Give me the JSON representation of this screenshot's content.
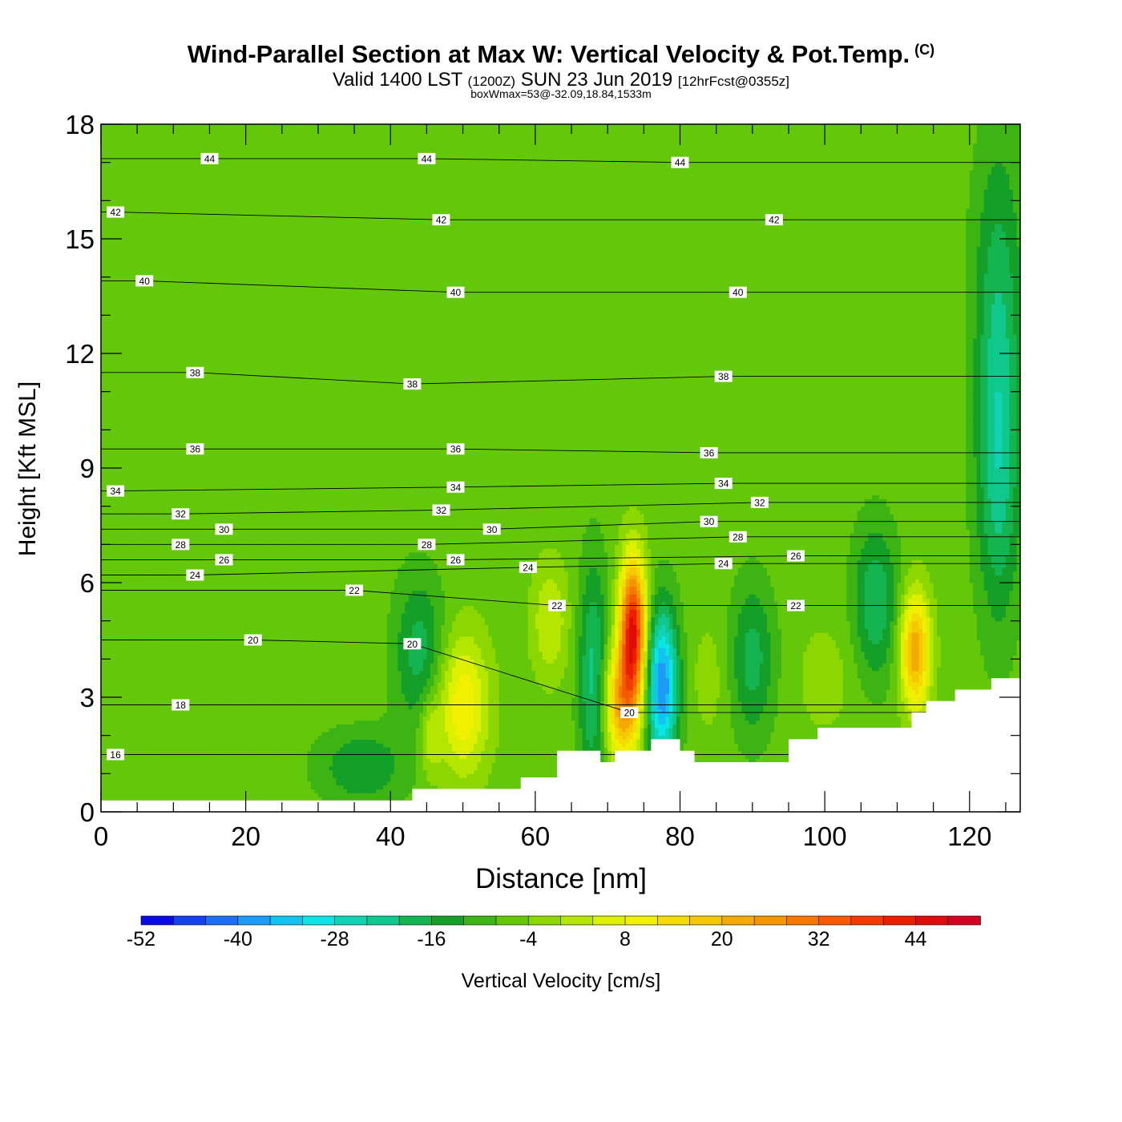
{
  "chart_data": {
    "type": "heatmap",
    "title": "Wind-Parallel Section at Max W: Vertical Velocity & Pot.Temp.",
    "title_mark": "(C)",
    "subtitle_main": "Valid 1400 LST",
    "subtitle_z": "(1200Z)",
    "subtitle_date": "SUN 23 Jun 2019",
    "subtitle_fcst": "[12hrFcst@0355z]",
    "subtitle3": "boxWmax=53@-32.09,18.84,1533m",
    "xlabel": "Distance [nm]",
    "ylabel": "Height [Kft MSL]",
    "xlim": [
      0,
      127
    ],
    "ylim": [
      0,
      18
    ],
    "xticks": [
      0,
      20,
      40,
      60,
      80,
      100,
      120
    ],
    "yticks": [
      0,
      3,
      6,
      9,
      12,
      15,
      18
    ],
    "background_value": -6,
    "terrain": [
      [
        0,
        0.3
      ],
      [
        43,
        0.3
      ],
      [
        43,
        0.6
      ],
      [
        58,
        0.6
      ],
      [
        58,
        0.9
      ],
      [
        63,
        0.9
      ],
      [
        63,
        1.6
      ],
      [
        69,
        1.6
      ],
      [
        69,
        1.3
      ],
      [
        71,
        1.3
      ],
      [
        71,
        1.6
      ],
      [
        76,
        1.6
      ],
      [
        76,
        1.9
      ],
      [
        80,
        1.9
      ],
      [
        80,
        1.6
      ],
      [
        82,
        1.6
      ],
      [
        82,
        1.3
      ],
      [
        95,
        1.3
      ],
      [
        95,
        1.9
      ],
      [
        99,
        1.9
      ],
      [
        99,
        2.2
      ],
      [
        112,
        2.2
      ],
      [
        112,
        2.6
      ],
      [
        114,
        2.6
      ],
      [
        114,
        2.9
      ],
      [
        118,
        2.9
      ],
      [
        118,
        3.2
      ],
      [
        123,
        3.2
      ],
      [
        123,
        3.5
      ],
      [
        127,
        3.5
      ]
    ],
    "w_features": [
      {
        "x": 73.5,
        "y": 4.8,
        "rx": 1.8,
        "ry": 1.8,
        "w": 50
      },
      {
        "x": 72.0,
        "y": 2.8,
        "rx": 2.5,
        "ry": 1.5,
        "w": 28
      },
      {
        "x": 77.5,
        "y": 3.3,
        "rx": 2.2,
        "ry": 2.0,
        "w": -34
      },
      {
        "x": 68.0,
        "y": 3.5,
        "rx": 2.0,
        "ry": 3.0,
        "w": -16
      },
      {
        "x": 50.0,
        "y": 2.8,
        "rx": 3.5,
        "ry": 1.8,
        "w": 18
      },
      {
        "x": 45.5,
        "y": 2.0,
        "rx": 1.5,
        "ry": 1.0,
        "w": 10
      },
      {
        "x": 44.0,
        "y": 4.2,
        "rx": 3.5,
        "ry": 2.0,
        "w": -12
      },
      {
        "x": 62.0,
        "y": 5.0,
        "rx": 2.5,
        "ry": 1.5,
        "w": 10
      },
      {
        "x": 112.5,
        "y": 4.2,
        "rx": 2.0,
        "ry": 1.5,
        "w": 30
      },
      {
        "x": 107.0,
        "y": 5.5,
        "rx": 3.0,
        "ry": 2.0,
        "w": -14
      },
      {
        "x": 124.0,
        "y": 9.0,
        "rx": 3.0,
        "ry": 4.0,
        "w": -16
      },
      {
        "x": 124.0,
        "y": 14.0,
        "rx": 3.5,
        "ry": 4.0,
        "w": -10
      },
      {
        "x": 90.0,
        "y": 4.0,
        "rx": 3.0,
        "ry": 2.0,
        "w": -12
      },
      {
        "x": 84.0,
        "y": 3.5,
        "rx": 2.5,
        "ry": 1.5,
        "w": 4
      },
      {
        "x": 100.0,
        "y": 3.5,
        "rx": 4.0,
        "ry": 1.5,
        "w": 4
      },
      {
        "x": 48.0,
        "y": 11.5,
        "rx": 4.0,
        "ry": 3.0,
        "w": 2
      },
      {
        "x": 66.0,
        "y": 13.0,
        "rx": 3.0,
        "ry": 4.0,
        "w": 2
      },
      {
        "x": 83.0,
        "y": 14.5,
        "rx": 2.0,
        "ry": 3.0,
        "w": 2
      },
      {
        "x": 34.0,
        "y": 4.0,
        "rx": 4.0,
        "ry": 1.5,
        "w": 2
      },
      {
        "x": 36.0,
        "y": 1.2,
        "rx": 6.0,
        "ry": 1.0,
        "w": -10
      },
      {
        "x": 2.0,
        "y": 3.2,
        "rx": 1.0,
        "ry": 0.5,
        "w": 2
      }
    ],
    "theta_labels": [
      {
        "x": 15,
        "y": 17.1,
        "v": "44"
      },
      {
        "x": 45,
        "y": 17.1,
        "v": "44"
      },
      {
        "x": 80,
        "y": 17.0,
        "v": "44"
      },
      {
        "x": 2,
        "y": 15.7,
        "v": "42"
      },
      {
        "x": 47,
        "y": 15.5,
        "v": "42"
      },
      {
        "x": 93,
        "y": 15.5,
        "v": "42"
      },
      {
        "x": 6,
        "y": 13.9,
        "v": "40"
      },
      {
        "x": 49,
        "y": 13.6,
        "v": "40"
      },
      {
        "x": 88,
        "y": 13.6,
        "v": "40"
      },
      {
        "x": 13,
        "y": 11.5,
        "v": "38"
      },
      {
        "x": 43,
        "y": 11.2,
        "v": "38"
      },
      {
        "x": 86,
        "y": 11.4,
        "v": "38"
      },
      {
        "x": 13,
        "y": 9.5,
        "v": "36"
      },
      {
        "x": 49,
        "y": 9.5,
        "v": "36"
      },
      {
        "x": 84,
        "y": 9.4,
        "v": "36"
      },
      {
        "x": 2,
        "y": 8.4,
        "v": "34"
      },
      {
        "x": 49,
        "y": 8.5,
        "v": "34"
      },
      {
        "x": 86,
        "y": 8.6,
        "v": "34"
      },
      {
        "x": 11,
        "y": 7.8,
        "v": "32"
      },
      {
        "x": 47,
        "y": 7.9,
        "v": "32"
      },
      {
        "x": 91,
        "y": 8.1,
        "v": "32"
      },
      {
        "x": 17,
        "y": 7.4,
        "v": "30"
      },
      {
        "x": 54,
        "y": 7.4,
        "v": "30"
      },
      {
        "x": 84,
        "y": 7.6,
        "v": "30"
      },
      {
        "x": 11,
        "y": 7.0,
        "v": "28"
      },
      {
        "x": 45,
        "y": 7.0,
        "v": "28"
      },
      {
        "x": 88,
        "y": 7.2,
        "v": "28"
      },
      {
        "x": 17,
        "y": 6.6,
        "v": "26"
      },
      {
        "x": 49,
        "y": 6.6,
        "v": "26"
      },
      {
        "x": 96,
        "y": 6.7,
        "v": "26"
      },
      {
        "x": 13,
        "y": 6.2,
        "v": "24"
      },
      {
        "x": 59,
        "y": 6.4,
        "v": "24"
      },
      {
        "x": 86,
        "y": 6.5,
        "v": "24"
      },
      {
        "x": 35,
        "y": 5.8,
        "v": "22"
      },
      {
        "x": 63,
        "y": 5.4,
        "v": "22"
      },
      {
        "x": 96,
        "y": 5.4,
        "v": "22"
      },
      {
        "x": 21,
        "y": 4.5,
        "v": "20"
      },
      {
        "x": 43,
        "y": 4.4,
        "v": "20"
      },
      {
        "x": 73,
        "y": 2.6,
        "v": "20"
      },
      {
        "x": 11,
        "y": 2.8,
        "v": "18"
      },
      {
        "x": 2,
        "y": 1.5,
        "v": "16"
      }
    ],
    "colorbar": {
      "label": "Vertical Velocity [cm/s]",
      "levels": [
        -52,
        -48,
        -44,
        -40,
        -36,
        -32,
        -28,
        -24,
        -20,
        -16,
        -12,
        -8,
        -4,
        0,
        4,
        8,
        12,
        16,
        20,
        24,
        28,
        32,
        36,
        40,
        44,
        48,
        52
      ],
      "tick_labels": [
        "-52",
        "-40",
        "-28",
        "-16",
        "-4",
        "8",
        "20",
        "32",
        "44"
      ],
      "colors": [
        "#0a0ae6",
        "#1440f0",
        "#1e6ef5",
        "#1e9bf5",
        "#14c3f0",
        "#0ae6e6",
        "#10d2b4",
        "#10c88c",
        "#14b450",
        "#14a028",
        "#3cb414",
        "#64c80a",
        "#8cd700",
        "#b4e600",
        "#dcf000",
        "#f0f000",
        "#f5dc00",
        "#f5c800",
        "#f5aa00",
        "#f59600",
        "#f57800",
        "#f55a00",
        "#f03c00",
        "#eb1e00",
        "#e10a0a",
        "#d2001e"
      ]
    }
  }
}
